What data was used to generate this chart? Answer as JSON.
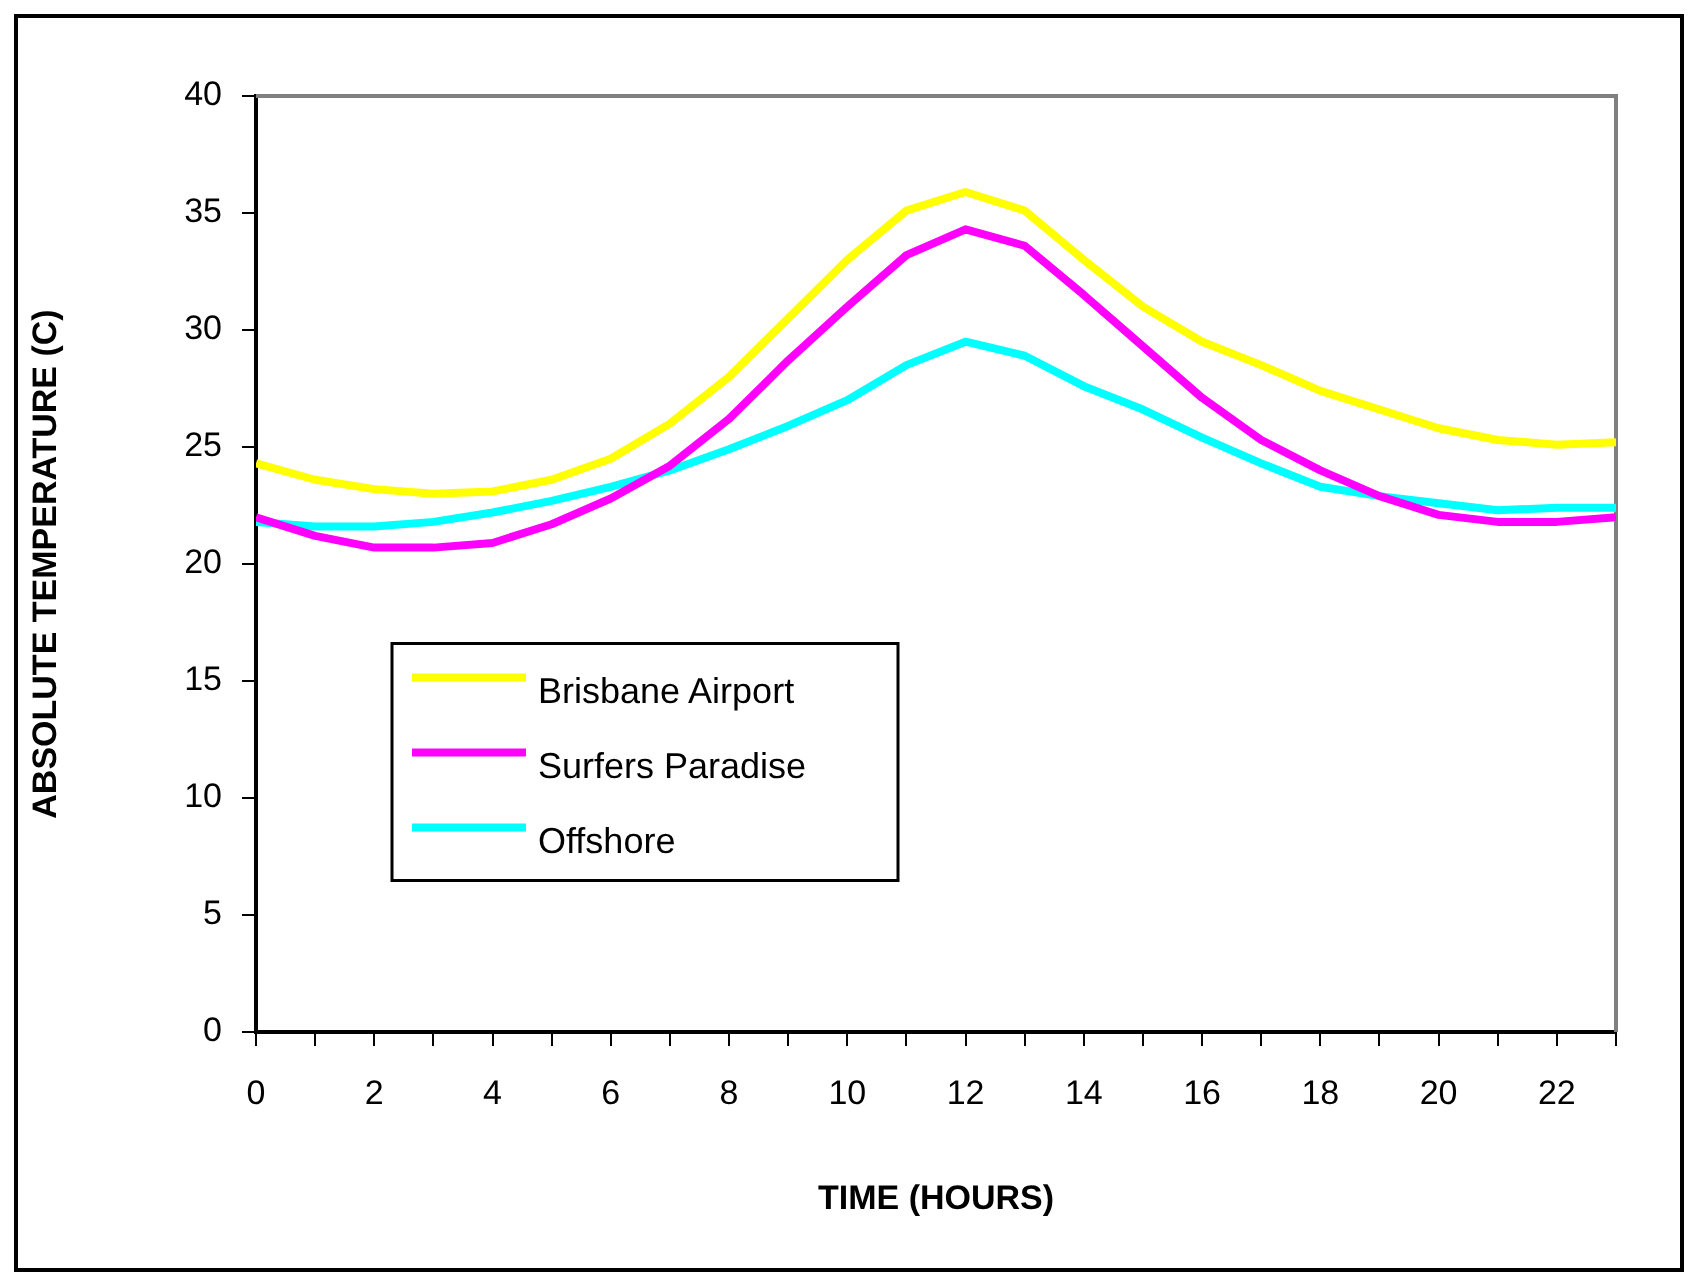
{
  "chart_data": {
    "type": "line",
    "xlabel": "TIME (HOURS)",
    "ylabel": "ABSOLUTE TEMPERATURE (C)",
    "x": [
      0,
      1,
      2,
      3,
      4,
      5,
      6,
      7,
      8,
      9,
      10,
      11,
      12,
      13,
      14,
      15,
      16,
      17,
      18,
      19,
      20,
      21,
      22,
      23
    ],
    "series": [
      {
        "name": "Brisbane Airport",
        "color": "#ffff00",
        "values": [
          24.3,
          23.6,
          23.2,
          23.0,
          23.1,
          23.6,
          24.5,
          26.0,
          28.0,
          30.5,
          33.0,
          35.1,
          35.9,
          35.1,
          33.0,
          31.0,
          29.5,
          28.5,
          27.4,
          26.6,
          25.8,
          25.3,
          25.1,
          25.2
        ]
      },
      {
        "name": "Surfers Paradise",
        "color": "#ff00ff",
        "values": [
          22.0,
          21.2,
          20.7,
          20.7,
          20.9,
          21.7,
          22.8,
          24.2,
          26.2,
          28.7,
          31.0,
          33.2,
          34.3,
          33.6,
          31.5,
          29.3,
          27.1,
          25.3,
          24.0,
          22.9,
          22.1,
          21.8,
          21.8,
          22.0
        ]
      },
      {
        "name": "Offshore",
        "color": "#00ffff",
        "values": [
          21.8,
          21.6,
          21.6,
          21.8,
          22.2,
          22.7,
          23.3,
          24.0,
          24.9,
          25.9,
          27.0,
          28.5,
          29.5,
          28.9,
          27.6,
          26.6,
          25.4,
          24.3,
          23.3,
          22.9,
          22.6,
          22.3,
          22.4,
          22.4
        ]
      }
    ],
    "xlim": [
      0,
      23
    ],
    "xticks": [
      0,
      {
        "value": 1,
        "label": null
      },
      2,
      {
        "value": 3,
        "label": null
      },
      4,
      {
        "value": 5,
        "label": null
      },
      6,
      {
        "value": 7,
        "label": null
      },
      8,
      {
        "value": 9,
        "label": null
      },
      10,
      {
        "value": 11,
        "label": null
      },
      12,
      {
        "value": 13,
        "label": null
      },
      14,
      {
        "value": 15,
        "label": null
      },
      16,
      {
        "value": 17,
        "label": null
      },
      18,
      {
        "value": 19,
        "label": null
      },
      20,
      {
        "value": 21,
        "label": null
      },
      22,
      {
        "value": 23,
        "label": null
      }
    ],
    "ylim": [
      0,
      40
    ],
    "yticks": [
      0,
      5,
      10,
      15,
      20,
      25,
      30,
      35,
      40
    ],
    "grid": false,
    "legend": "left",
    "marker": "none",
    "line_style": "solid"
  }
}
